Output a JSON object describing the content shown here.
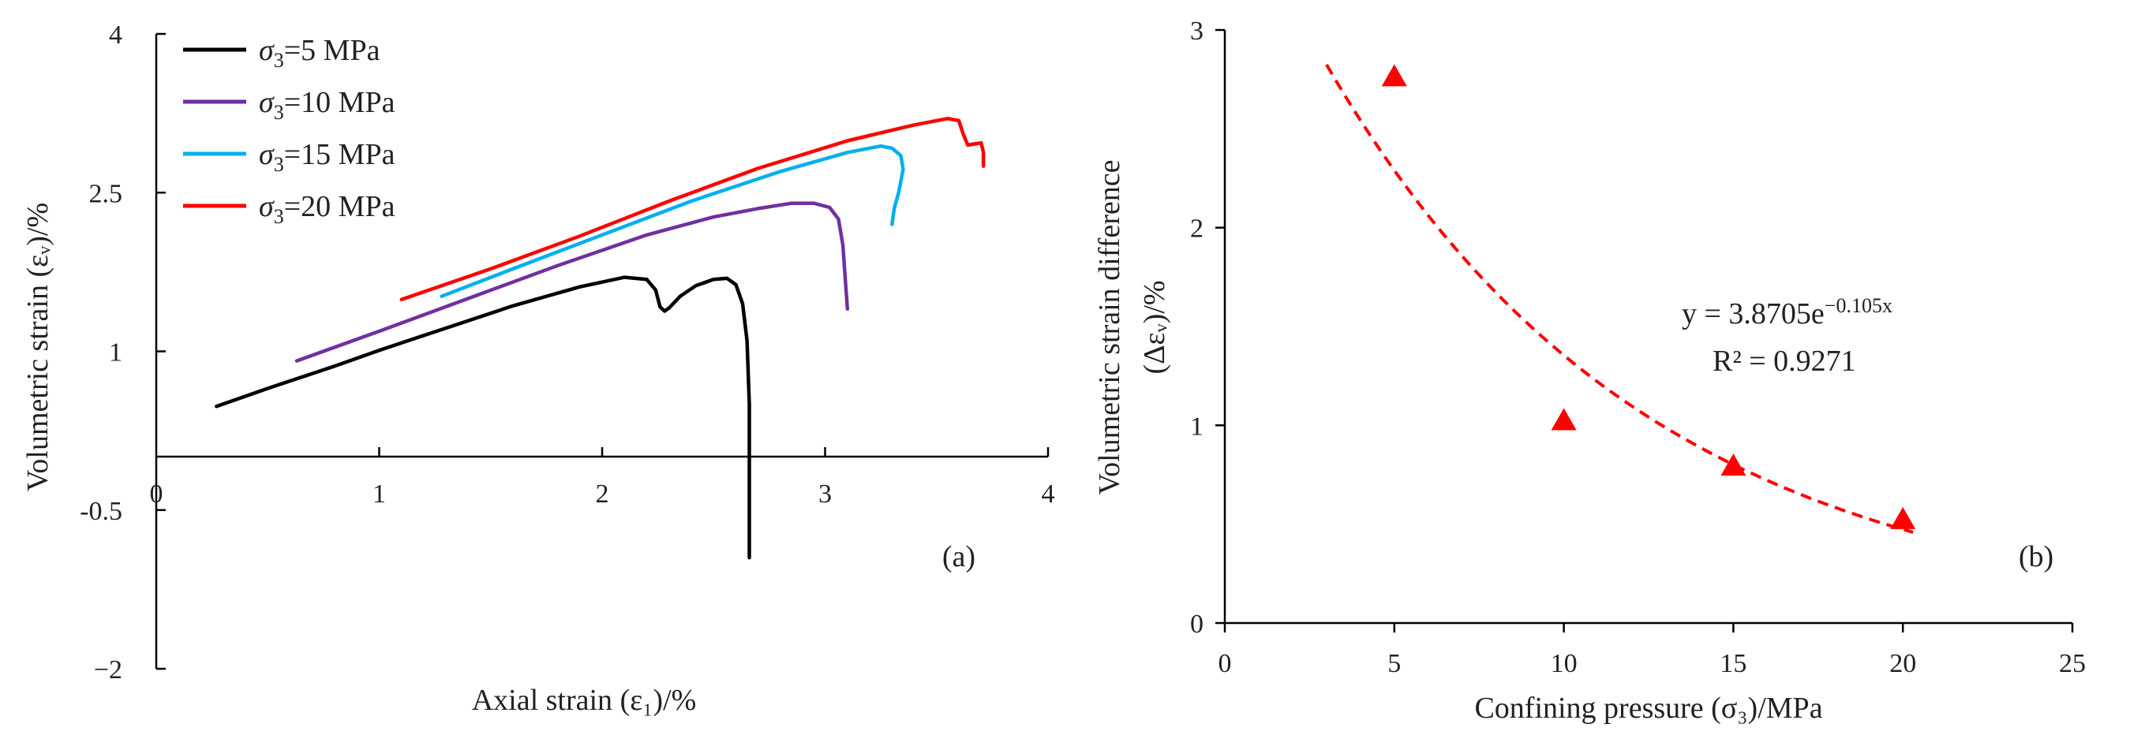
{
  "chart_data": [
    {
      "id": "a",
      "type": "line",
      "panel_label": "(a)",
      "title": "",
      "xlabel": "Axial strain (ε₁)/%",
      "ylabel": "Volumetric strain (εᵥ)/%",
      "xlim": [
        0,
        4
      ],
      "ylim": [
        -2,
        4
      ],
      "x_ticks": [
        0,
        1,
        2,
        3,
        4
      ],
      "x_tick_labels": [
        "0",
        "1",
        "2",
        "3",
        "4"
      ],
      "y_ticks": [
        -2,
        -0.5,
        1,
        2.5,
        4
      ],
      "y_tick_labels": [
        "−2",
        "-0.5",
        "1",
        "2.5",
        "4"
      ],
      "legend_position": "top-left",
      "series": [
        {
          "name": "σ₃=5 MPa",
          "sym": "σ",
          "sub": "3",
          "rest": "=5 MPa",
          "color": "#000000",
          "points": [
            [
              0.27,
              0.48
            ],
            [
              0.5,
              0.65
            ],
            [
              0.8,
              0.86
            ],
            [
              1.0,
              1.01
            ],
            [
              1.3,
              1.22
            ],
            [
              1.6,
              1.43
            ],
            [
              1.9,
              1.61
            ],
            [
              2.1,
              1.7
            ],
            [
              2.2,
              1.68
            ],
            [
              2.24,
              1.58
            ],
            [
              2.26,
              1.42
            ],
            [
              2.28,
              1.38
            ],
            [
              2.3,
              1.41
            ],
            [
              2.35,
              1.52
            ],
            [
              2.42,
              1.62
            ],
            [
              2.5,
              1.68
            ],
            [
              2.56,
              1.69
            ],
            [
              2.6,
              1.63
            ],
            [
              2.63,
              1.45
            ],
            [
              2.65,
              1.1
            ],
            [
              2.66,
              0.5
            ],
            [
              2.66,
              0.0
            ],
            [
              2.66,
              -0.5
            ],
            [
              2.66,
              -0.95
            ]
          ]
        },
        {
          "name": "σ₃=10 MPa",
          "sym": "σ",
          "sub": "3",
          "rest": "=10 MPa",
          "color": "#7030a0",
          "points": [
            [
              0.63,
              0.91
            ],
            [
              1.0,
              1.19
            ],
            [
              1.4,
              1.5
            ],
            [
              1.8,
              1.81
            ],
            [
              2.2,
              2.1
            ],
            [
              2.5,
              2.27
            ],
            [
              2.7,
              2.35
            ],
            [
              2.85,
              2.4
            ],
            [
              2.95,
              2.4
            ],
            [
              3.02,
              2.36
            ],
            [
              3.06,
              2.25
            ],
            [
              3.08,
              2.0
            ],
            [
              3.09,
              1.7
            ],
            [
              3.1,
              1.4
            ]
          ]
        },
        {
          "name": "σ₃=15 MPa",
          "sym": "σ",
          "sub": "3",
          "rest": "=15 MPa",
          "color": "#00b0f0",
          "points": [
            [
              1.28,
              1.52
            ],
            [
              1.6,
              1.78
            ],
            [
              2.0,
              2.1
            ],
            [
              2.4,
              2.42
            ],
            [
              2.8,
              2.7
            ],
            [
              3.1,
              2.88
            ],
            [
              3.25,
              2.94
            ],
            [
              3.3,
              2.92
            ],
            [
              3.34,
              2.85
            ],
            [
              3.35,
              2.72
            ],
            [
              3.33,
              2.5
            ],
            [
              3.31,
              2.35
            ],
            [
              3.3,
              2.2
            ]
          ]
        },
        {
          "name": "σ₃=20 MPa",
          "sym": "σ",
          "sub": "3",
          "rest": "=20 MPa",
          "color": "#ff0000",
          "points": [
            [
              1.1,
              1.49
            ],
            [
              1.5,
              1.78
            ],
            [
              1.9,
              2.09
            ],
            [
              2.3,
              2.42
            ],
            [
              2.7,
              2.73
            ],
            [
              3.1,
              2.99
            ],
            [
              3.4,
              3.14
            ],
            [
              3.55,
              3.2
            ],
            [
              3.6,
              3.18
            ],
            [
              3.62,
              3.05
            ],
            [
              3.64,
              2.95
            ],
            [
              3.67,
              2.96
            ],
            [
              3.7,
              2.97
            ],
            [
              3.71,
              2.88
            ],
            [
              3.71,
              2.75
            ]
          ]
        }
      ]
    },
    {
      "id": "b",
      "type": "scatter",
      "panel_label": "(b)",
      "title": "",
      "xlabel": "Confining pressure (σ₃)/MPa",
      "ylabel_line1": "Volumetric strain difference",
      "ylabel_line2": "(Δεᵥ)/%",
      "xlim": [
        0,
        25
      ],
      "ylim": [
        0,
        3
      ],
      "x_ticks": [
        0,
        5,
        10,
        15,
        20,
        25
      ],
      "x_tick_labels": [
        "0",
        "5",
        "10",
        "15",
        "20",
        "25"
      ],
      "y_ticks": [
        0,
        1,
        2,
        3
      ],
      "y_tick_labels": [
        "0",
        "1",
        "2",
        "3"
      ],
      "marker_color": "#ff0000",
      "points": [
        [
          5,
          2.76
        ],
        [
          10,
          1.02
        ],
        [
          15,
          0.79
        ],
        [
          20,
          0.52
        ]
      ],
      "trendline": {
        "type": "exponential",
        "a": 3.8705,
        "b": -0.105,
        "x_range": [
          3,
          20.3
        ],
        "color": "#ff0000",
        "style": "dashed",
        "equation_base": "y = 3.8705e",
        "equation_exp": "−0.105x",
        "r_squared_label": "R² = 0.9271"
      }
    }
  ]
}
